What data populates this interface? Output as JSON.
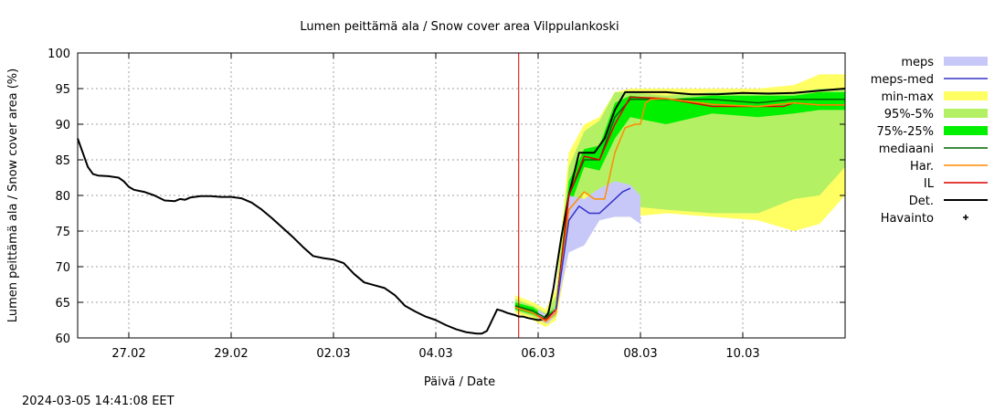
{
  "footer": {
    "timestamp": "2024-03-05 14:41:08 EET"
  },
  "chart_data": {
    "type": "area",
    "title": "Lumen peittämä ala / Snow cover area Vilppulankoski",
    "xlabel": "Päivä / Date",
    "ylabel": "Lumen peittämä ala / Snow cover area (%)",
    "ylim": [
      60,
      100
    ],
    "yticks": [
      60,
      65,
      70,
      75,
      80,
      85,
      90,
      95,
      100
    ],
    "xlim": [
      26.0,
      41.0
    ],
    "xticks": [
      {
        "x": 27.0,
        "label": "27.02"
      },
      {
        "x": 29.0,
        "label": "29.02"
      },
      {
        "x": 31.0,
        "label": "02.03"
      },
      {
        "x": 33.0,
        "label": "04.03"
      },
      {
        "x": 35.0,
        "label": "06.03"
      },
      {
        "x": 37.0,
        "label": "08.03"
      },
      {
        "x": 39.0,
        "label": "10.03"
      }
    ],
    "x_unit_note": "x = day counted from 01.02.2024 (27.02 = 27, 01.03 = 30)",
    "grid": true,
    "forecast_start_x": 34.62,
    "legend": [
      {
        "label": "meps",
        "color": "#c8c8f8",
        "kind": "band"
      },
      {
        "label": "meps-med",
        "color": "#3232c8",
        "kind": "line"
      },
      {
        "label": "min-max",
        "color": "#ffff64",
        "kind": "band"
      },
      {
        "label": "95%-5%",
        "color": "#b4f064",
        "kind": "band"
      },
      {
        "label": "75%-25%",
        "color": "#00f000",
        "kind": "band"
      },
      {
        "label": "mediaani",
        "color": "#006400",
        "kind": "line"
      },
      {
        "label": "Har.",
        "color": "#ff8c00",
        "kind": "line"
      },
      {
        "label": "IL",
        "color": "#dc0000",
        "kind": "line"
      },
      {
        "label": "Det.",
        "color": "#000000",
        "kind": "line"
      },
      {
        "label": "Havainto",
        "color": "#000000",
        "kind": "point"
      }
    ],
    "bands": {
      "min-max": {
        "x": [
          34.55,
          34.9,
          35.15,
          35.35,
          35.6,
          35.9,
          36.2,
          36.5,
          36.8,
          37.5,
          38.4,
          39.3,
          40.0,
          40.5,
          41.0
        ],
        "low": [
          63.5,
          62.5,
          61.5,
          62.5,
          72.0,
          79.5,
          78.5,
          77.0,
          77.0,
          77.5,
          77.0,
          76.5,
          75.0,
          76.0,
          80.0
        ],
        "high": [
          66.0,
          65.0,
          64.0,
          67.0,
          86.0,
          90.0,
          91.0,
          94.5,
          95.0,
          95.0,
          95.0,
          95.0,
          95.5,
          97.0,
          97.0
        ]
      },
      "95%-5%": {
        "x": [
          34.55,
          34.9,
          35.15,
          35.35,
          35.6,
          35.9,
          36.2,
          36.5,
          36.8,
          37.5,
          38.4,
          39.3,
          40.0,
          40.5,
          41.0
        ],
        "low": [
          63.8,
          63.0,
          62.0,
          63.0,
          74.0,
          80.5,
          79.5,
          79.0,
          78.5,
          78.0,
          77.5,
          77.5,
          79.5,
          80.0,
          84.0
        ],
        "high": [
          65.5,
          64.5,
          63.5,
          66.0,
          84.0,
          89.0,
          90.5,
          94.5,
          94.5,
          94.0,
          94.5,
          94.5,
          94.5,
          95.0,
          95.0
        ]
      },
      "75%-25%": {
        "x": [
          34.55,
          34.9,
          35.15,
          35.35,
          35.6,
          35.9,
          36.2,
          36.5,
          36.8,
          37.5,
          38.4,
          39.3,
          40.0,
          40.5,
          41.0
        ],
        "low": [
          64.0,
          63.3,
          62.3,
          63.5,
          78.0,
          84.0,
          83.5,
          88.0,
          91.0,
          90.0,
          91.5,
          91.0,
          91.5,
          92.0,
          92.0
        ],
        "high": [
          65.0,
          64.3,
          63.0,
          64.5,
          82.0,
          86.5,
          87.0,
          93.0,
          94.0,
          93.5,
          94.0,
          94.0,
          94.0,
          94.5,
          94.5
        ]
      },
      "meps": {
        "x": [
          35.0,
          35.2,
          35.35,
          35.6,
          35.9,
          36.2,
          36.5,
          36.8,
          37.0
        ],
        "low": [
          62.5,
          62.0,
          63.5,
          72.0,
          73.0,
          76.5,
          77.0,
          77.0,
          76.0
        ],
        "high": [
          64.0,
          63.0,
          64.5,
          80.0,
          79.5,
          81.0,
          82.0,
          81.5,
          80.0
        ]
      }
    },
    "series": [
      {
        "name": "Det.",
        "color": "#000000",
        "x": [
          26.0,
          26.1,
          26.2,
          26.3,
          26.4,
          26.6,
          26.8,
          26.9,
          27.0,
          27.1,
          27.3,
          27.5,
          27.7,
          27.9,
          28.0,
          28.1,
          28.2,
          28.4,
          28.6,
          28.8,
          29.0,
          29.2,
          29.4,
          29.6,
          29.8,
          30.0,
          30.2,
          30.4,
          30.6,
          30.8,
          31.0,
          31.2,
          31.4,
          31.6,
          31.8,
          32.0,
          32.2,
          32.4,
          32.6,
          32.8,
          33.0,
          33.2,
          33.4,
          33.6,
          33.8,
          33.9,
          34.0,
          34.1,
          34.2,
          34.3,
          34.4,
          34.55,
          34.62,
          34.7,
          34.8,
          35.0,
          35.1,
          35.2,
          35.3,
          35.45,
          35.6,
          35.8,
          35.95,
          36.1,
          36.3,
          36.5,
          36.7,
          37.0,
          37.5,
          38.0,
          38.5,
          39.0,
          39.5,
          40.0,
          40.5,
          41.0
        ],
        "y": [
          88.0,
          86.0,
          84.0,
          83.0,
          82.8,
          82.7,
          82.5,
          82.0,
          81.2,
          80.8,
          80.5,
          80.0,
          79.3,
          79.2,
          79.5,
          79.4,
          79.7,
          79.9,
          79.9,
          79.8,
          79.8,
          79.6,
          79.0,
          78.0,
          76.8,
          75.5,
          74.2,
          72.8,
          71.5,
          71.2,
          71.0,
          70.5,
          69.0,
          67.8,
          67.4,
          67.0,
          66.0,
          64.5,
          63.7,
          63.0,
          62.5,
          61.8,
          61.2,
          60.8,
          60.6,
          60.6,
          61.0,
          62.5,
          64.0,
          63.8,
          63.5,
          63.2,
          63.0,
          63.0,
          62.8,
          62.5,
          62.6,
          63.5,
          67.0,
          74.0,
          80.0,
          86.0,
          86.0,
          86.0,
          88.0,
          92.0,
          94.5,
          94.5,
          94.5,
          94.2,
          94.2,
          94.4,
          94.3,
          94.4,
          94.7,
          95.0
        ]
      },
      {
        "name": "mediaani",
        "color": "#006400",
        "x": [
          34.55,
          34.9,
          35.15,
          35.35,
          35.6,
          35.9,
          36.2,
          36.5,
          36.8,
          37.5,
          38.4,
          39.3,
          40.0,
          40.5,
          41.0
        ],
        "y": [
          64.5,
          63.8,
          62.8,
          64.0,
          80.0,
          85.0,
          85.0,
          91.0,
          93.5,
          93.5,
          93.5,
          93.0,
          93.5,
          93.5,
          93.5
        ]
      },
      {
        "name": "IL",
        "color": "#dc0000",
        "x": [
          34.55,
          34.9,
          35.15,
          35.35,
          35.6,
          35.9,
          36.2,
          36.5,
          36.8,
          37.5,
          38.4,
          39.3,
          39.8,
          40.0,
          40.5,
          41.0
        ],
        "y": [
          64.3,
          63.5,
          62.5,
          64.0,
          80.0,
          85.5,
          85.0,
          90.0,
          93.8,
          93.6,
          92.5,
          92.5,
          92.5,
          93.0,
          92.7,
          92.7
        ]
      },
      {
        "name": "Har.",
        "color": "#ff8c00",
        "x": [
          34.55,
          34.9,
          35.15,
          35.35,
          35.6,
          35.9,
          36.1,
          36.3,
          36.5,
          36.7,
          36.9,
          37.0,
          37.1,
          37.2,
          37.5,
          38.4,
          39.3,
          40.0,
          40.5,
          41.0
        ],
        "y": [
          64.3,
          63.5,
          62.3,
          63.5,
          78.0,
          80.5,
          79.5,
          79.5,
          86.0,
          89.5,
          90.0,
          90.0,
          93.0,
          93.5,
          93.6,
          92.8,
          92.5,
          93.0,
          92.7,
          92.7
        ]
      },
      {
        "name": "meps-med",
        "color": "#3232c8",
        "x": [
          35.35,
          35.6,
          35.8,
          36.0,
          36.2,
          36.35,
          36.5,
          36.65,
          36.8
        ],
        "y": [
          64.0,
          76.5,
          78.5,
          77.5,
          77.5,
          78.5,
          79.5,
          80.5,
          81.0
        ]
      }
    ]
  }
}
